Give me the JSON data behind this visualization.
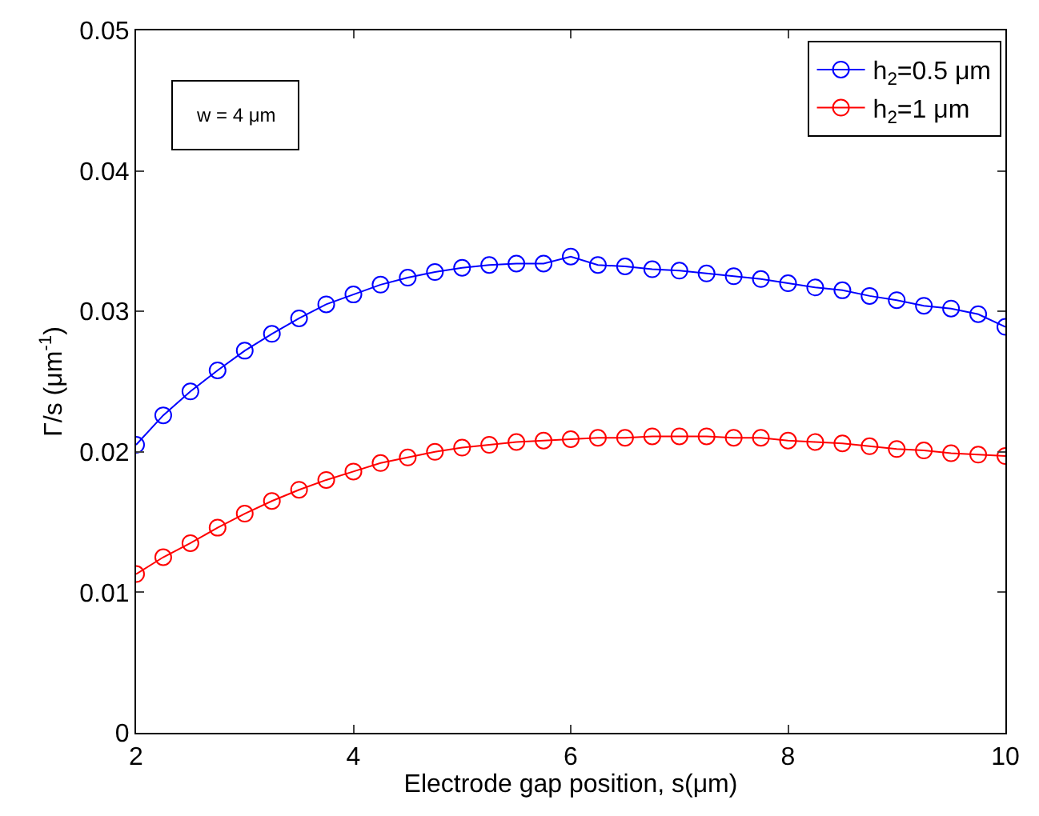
{
  "chart_data": {
    "type": "line",
    "xlabel": "Electrode gap position, s(μm)",
    "ylabel": "Γ/s (μm$^{-1}$)",
    "x": [
      2,
      2.25,
      2.5,
      2.75,
      3,
      3.25,
      3.5,
      3.75,
      4,
      4.25,
      4.5,
      4.75,
      5,
      5.25,
      5.5,
      5.75,
      6,
      6.25,
      6.5,
      6.75,
      7,
      7.25,
      7.5,
      7.75,
      8,
      8.25,
      8.5,
      8.75,
      9,
      9.25,
      9.5,
      9.75,
      10
    ],
    "series": [
      {
        "name": "h$_{2}$=0.5 μm",
        "color": "#0000ff",
        "values": [
          0.0205,
          0.0226,
          0.0243,
          0.0258,
          0.0272,
          0.0284,
          0.0295,
          0.0305,
          0.0312,
          0.0319,
          0.0324,
          0.0328,
          0.0331,
          0.0333,
          0.0334,
          0.0334,
          0.0339,
          0.0333,
          0.0332,
          0.033,
          0.0329,
          0.0327,
          0.0325,
          0.0323,
          0.032,
          0.0317,
          0.0315,
          0.0311,
          0.0308,
          0.0304,
          0.0302,
          0.0298,
          0.0289
        ]
      },
      {
        "name": "h$_{2}$=1 μm",
        "color": "#ff0000",
        "values": [
          0.0113,
          0.0125,
          0.0135,
          0.0146,
          0.0156,
          0.0165,
          0.0173,
          0.018,
          0.0186,
          0.0192,
          0.0196,
          0.02,
          0.0203,
          0.0205,
          0.0207,
          0.0208,
          0.0209,
          0.021,
          0.021,
          0.0211,
          0.0211,
          0.0211,
          0.021,
          0.021,
          0.0208,
          0.0207,
          0.0206,
          0.0204,
          0.0202,
          0.0201,
          0.0199,
          0.0198,
          0.0197
        ]
      }
    ],
    "annotations": [
      "w = 4 μm"
    ],
    "xlim": [
      2,
      10
    ],
    "xticks": [
      2,
      4,
      6,
      8,
      10
    ],
    "ylim": [
      0,
      0.05
    ],
    "yticks": [
      0,
      0.01,
      0.02,
      0.03,
      0.04,
      0.05
    ],
    "marker": "circle",
    "line_style": "solid",
    "legend": "top right"
  }
}
